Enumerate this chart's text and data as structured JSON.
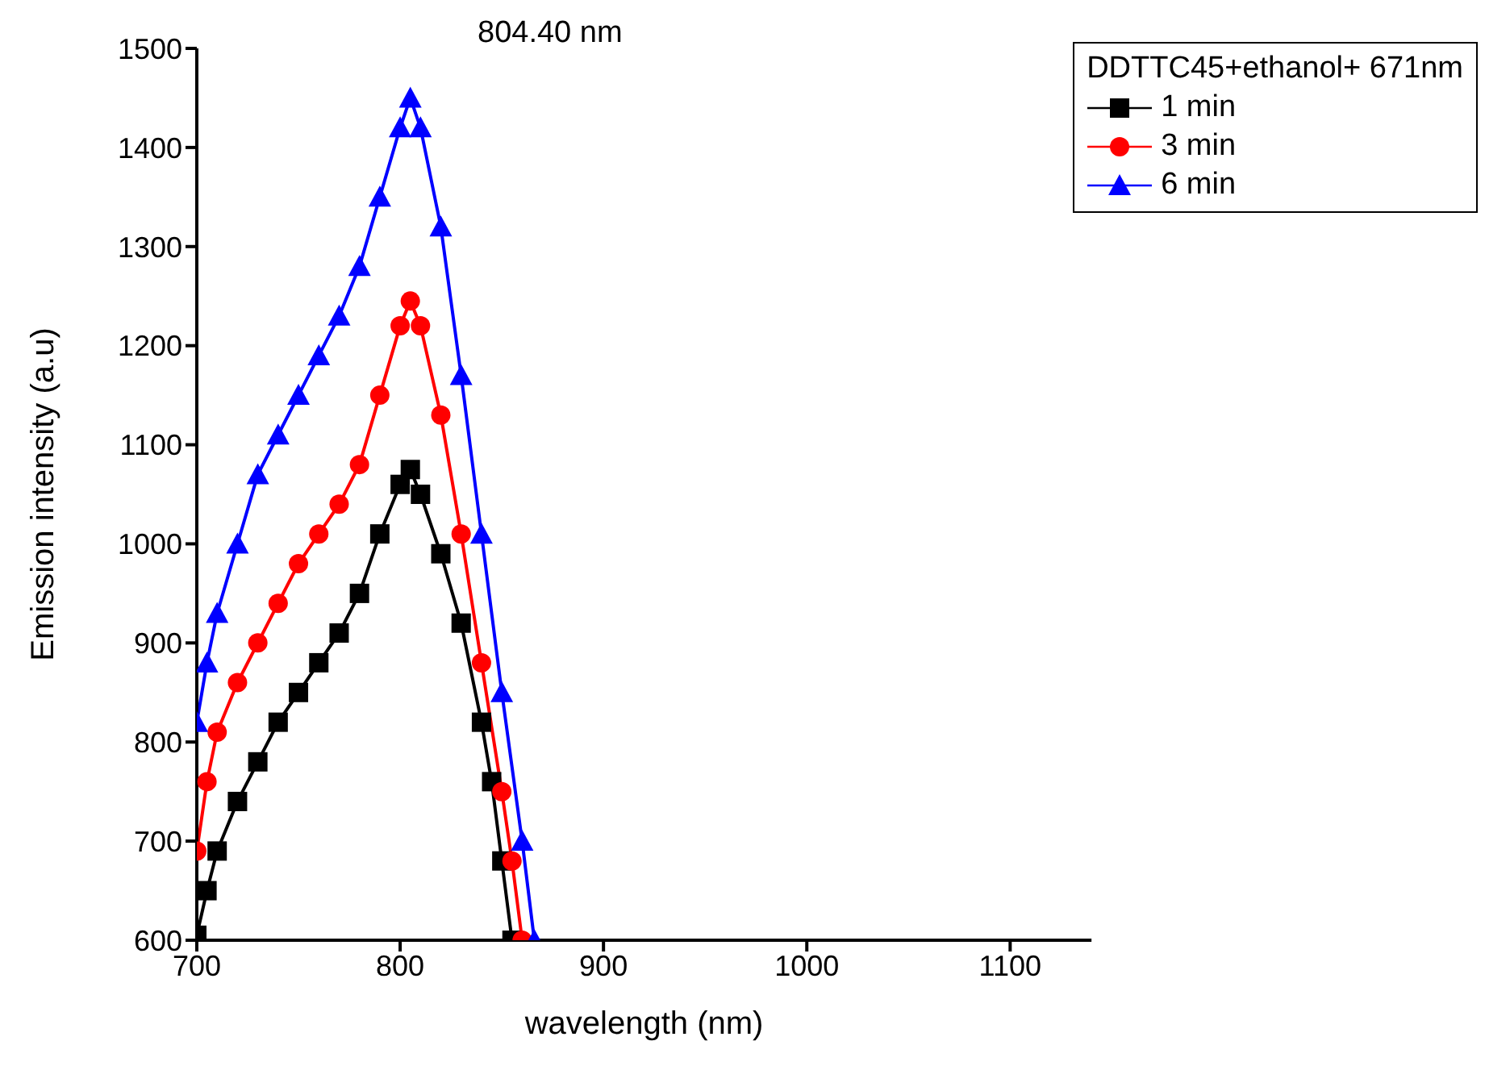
{
  "chart_data": {
    "type": "line",
    "xlabel": "wavelength (nm)",
    "ylabel": "Emission intensity (a.u)",
    "legend_title": "DDTTC45+ethanol+ 671nm",
    "legend": "top right",
    "grid": false,
    "xlim": [
      700,
      1140
    ],
    "xticks": [
      700,
      800,
      900,
      1000,
      1100
    ],
    "ylim": [
      600,
      1500
    ],
    "yticks": [
      600,
      700,
      800,
      900,
      1000,
      1100,
      1200,
      1300,
      1400,
      1500
    ],
    "annotations": [
      "804.40 nm"
    ],
    "series": [
      {
        "name": "1 min",
        "color": "#000000",
        "marker": "square",
        "x": [
          700,
          705,
          710,
          720,
          730,
          740,
          750,
          760,
          770,
          780,
          790,
          800,
          805,
          810,
          820,
          830,
          840,
          845,
          850,
          855
        ],
        "values": [
          605,
          650,
          690,
          740,
          780,
          820,
          850,
          880,
          910,
          950,
          1010,
          1060,
          1075,
          1050,
          990,
          920,
          820,
          760,
          680,
          600
        ]
      },
      {
        "name": "3 min",
        "color": "#ff0000",
        "marker": "circle",
        "x": [
          700,
          705,
          710,
          720,
          730,
          740,
          750,
          760,
          770,
          780,
          790,
          800,
          805,
          810,
          820,
          830,
          840,
          850,
          855,
          860
        ],
        "values": [
          690,
          760,
          810,
          860,
          900,
          940,
          980,
          1010,
          1040,
          1080,
          1150,
          1220,
          1245,
          1220,
          1130,
          1010,
          880,
          750,
          680,
          600
        ]
      },
      {
        "name": "6 min",
        "color": "#0000ff",
        "marker": "triangle",
        "x": [
          700,
          705,
          710,
          720,
          730,
          740,
          750,
          760,
          770,
          780,
          790,
          800,
          805,
          810,
          820,
          830,
          840,
          850,
          860,
          866
        ],
        "values": [
          820,
          880,
          930,
          1000,
          1070,
          1110,
          1150,
          1190,
          1230,
          1280,
          1350,
          1420,
          1450,
          1420,
          1320,
          1170,
          1010,
          850,
          700,
          600
        ]
      }
    ]
  }
}
